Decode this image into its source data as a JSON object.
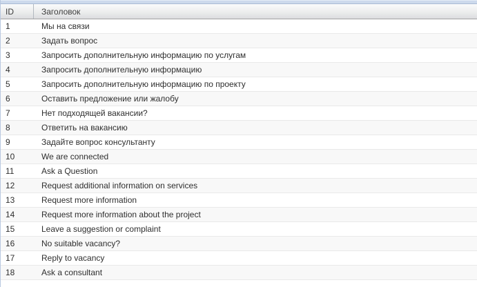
{
  "grid": {
    "columns": [
      {
        "key": "id",
        "label": "ID"
      },
      {
        "key": "title",
        "label": "Заголовок"
      }
    ],
    "rows": [
      {
        "id": "1",
        "title": "Мы на связи"
      },
      {
        "id": "2",
        "title": "Задать вопрос"
      },
      {
        "id": "3",
        "title": "Запросить дополнительную информацию по услугам"
      },
      {
        "id": "4",
        "title": "Запросить дополнительную информацию"
      },
      {
        "id": "5",
        "title": "Запросить дополнительную информацию по проекту"
      },
      {
        "id": "6",
        "title": "Оставить предложение или жалобу"
      },
      {
        "id": "7",
        "title": "Нет подходящей вакансии?"
      },
      {
        "id": "8",
        "title": "Ответить на вакансию"
      },
      {
        "id": "9",
        "title": "Задайте вопрос консультанту"
      },
      {
        "id": "10",
        "title": "We are connected"
      },
      {
        "id": "11",
        "title": "Ask a Question"
      },
      {
        "id": "12",
        "title": "Request additional information on services"
      },
      {
        "id": "13",
        "title": "Request more information"
      },
      {
        "id": "14",
        "title": "Request more information about the project"
      },
      {
        "id": "15",
        "title": "Leave a suggestion or complaint"
      },
      {
        "id": "16",
        "title": "No suitable vacancy?"
      },
      {
        "id": "17",
        "title": "Reply to vacancy"
      },
      {
        "id": "18",
        "title": "Ask a consultant"
      }
    ],
    "colors": {
      "strip_bg": "#ccd9ec",
      "strip_border": "#a9bad4",
      "frame_border": "#b9c8e0",
      "header_gradient_top": "#fafbfc",
      "header_gradient_bottom": "#dbdcdf",
      "header_border": "#a3a3a3",
      "alt_row_bg": "#f8f8f8",
      "row_separator": "#e9e9e9",
      "text": "#2e2e2e"
    }
  }
}
